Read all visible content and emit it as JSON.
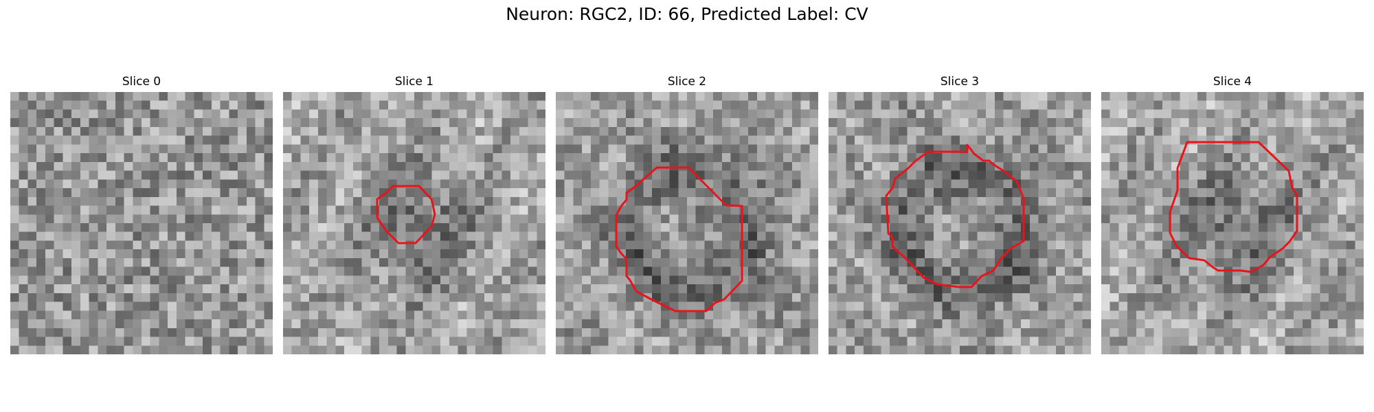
{
  "figure": {
    "title": "Neuron: RGC2, ID: 66, Predicted Label: CV",
    "contour_color": "#e8141c"
  },
  "panels": [
    {
      "title": "Slice 0",
      "has_contour": false,
      "texture": "uniform-noise"
    },
    {
      "title": "Slice 1",
      "has_contour": true,
      "texture": "dark-center"
    },
    {
      "title": "Slice 2",
      "has_contour": true,
      "texture": "ring"
    },
    {
      "title": "Slice 3",
      "has_contour": true,
      "texture": "ring"
    },
    {
      "title": "Slice 4",
      "has_contour": true,
      "texture": "dark-center"
    }
  ]
}
